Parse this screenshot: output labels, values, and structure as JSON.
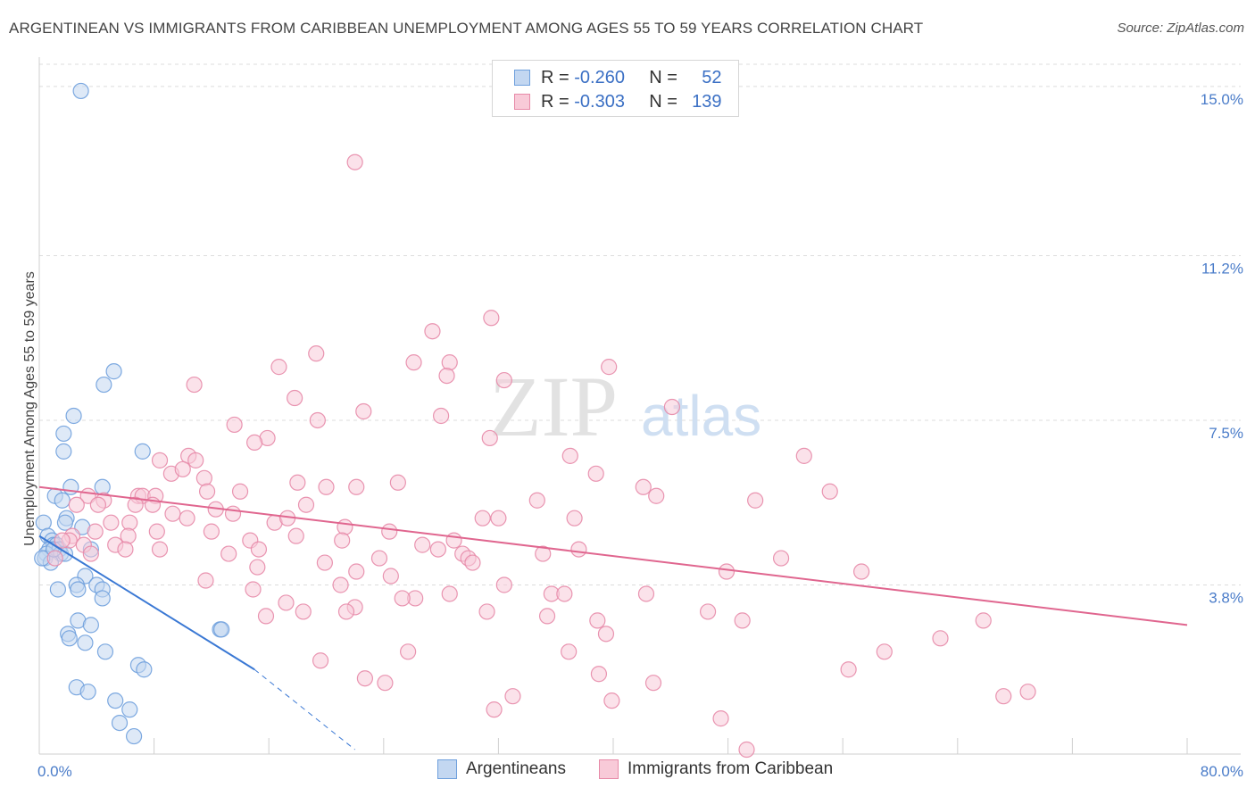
{
  "title": "ARGENTINEAN VS IMMIGRANTS FROM CARIBBEAN UNEMPLOYMENT AMONG AGES 55 TO 59 YEARS CORRELATION CHART",
  "source": "Source: ZipAtlas.com",
  "watermark": {
    "zip": "ZIP",
    "atlas": "atlas"
  },
  "legend": {
    "r_label": "R =",
    "n_label": "N =",
    "series": [
      {
        "r": "-0.260",
        "n": "52",
        "color": "#6fa0dd",
        "fill": "#c3d7f1"
      },
      {
        "r": "-0.303",
        "n": "139",
        "color": "#e78aa8",
        "fill": "#f8cad8"
      }
    ]
  },
  "bottom_legend": [
    "Argentineans",
    "Immigrants from Caribbean"
  ],
  "chart_data": {
    "type": "scatter",
    "title": "ARGENTINEAN VS IMMIGRANTS FROM CARIBBEAN UNEMPLOYMENT AMONG AGES 55 TO 59 YEARS CORRELATION CHART",
    "xlabel": "",
    "ylabel": "Unemployment Among Ages 55 to 59 years",
    "xlim": [
      0,
      80
    ],
    "ylim": [
      0,
      15.5
    ],
    "x_tick_labels": [
      "0.0%",
      "80.0%"
    ],
    "y_ticks": [
      3.8,
      7.5,
      11.2,
      15.0
    ],
    "y_tick_labels": [
      "3.8%",
      "7.5%",
      "11.2%",
      "15.0%"
    ],
    "series": [
      {
        "name": "Argentineans",
        "color": "#6fa0dd",
        "fill": "#c3d7f1",
        "points": [
          [
            2.9,
            14.9
          ],
          [
            5.2,
            8.6
          ],
          [
            4.5,
            8.3
          ],
          [
            2.4,
            7.6
          ],
          [
            1.7,
            7.2
          ],
          [
            7.2,
            6.8
          ],
          [
            1.7,
            6.8
          ],
          [
            4.4,
            6.0
          ],
          [
            2.2,
            6.0
          ],
          [
            1.1,
            5.8
          ],
          [
            1.6,
            5.7
          ],
          [
            0.3,
            5.2
          ],
          [
            1.9,
            5.3
          ],
          [
            1.8,
            5.2
          ],
          [
            3.0,
            5.1
          ],
          [
            0.6,
            4.9
          ],
          [
            0.9,
            4.8
          ],
          [
            1.0,
            4.7
          ],
          [
            1.2,
            4.7
          ],
          [
            0.7,
            4.6
          ],
          [
            1.4,
            4.6
          ],
          [
            0.5,
            4.5
          ],
          [
            1.5,
            4.5
          ],
          [
            1.8,
            4.5
          ],
          [
            3.6,
            4.6
          ],
          [
            0.4,
            4.4
          ],
          [
            0.8,
            4.3
          ],
          [
            3.2,
            4.0
          ],
          [
            4.0,
            3.8
          ],
          [
            2.6,
            3.8
          ],
          [
            4.4,
            3.7
          ],
          [
            2.7,
            3.7
          ],
          [
            1.3,
            3.7
          ],
          [
            4.4,
            3.5
          ],
          [
            2.7,
            3.0
          ],
          [
            3.6,
            2.9
          ],
          [
            12.6,
            2.8
          ],
          [
            12.7,
            2.8
          ],
          [
            2.0,
            2.7
          ],
          [
            2.1,
            2.6
          ],
          [
            3.2,
            2.5
          ],
          [
            4.6,
            2.3
          ],
          [
            6.9,
            2.0
          ],
          [
            7.3,
            1.9
          ],
          [
            2.6,
            1.5
          ],
          [
            3.4,
            1.4
          ],
          [
            5.3,
            1.2
          ],
          [
            6.3,
            1.0
          ],
          [
            5.6,
            0.7
          ],
          [
            6.6,
            0.4
          ],
          [
            1.0,
            4.6
          ],
          [
            0.2,
            4.4
          ]
        ],
        "trend": {
          "x0": 0,
          "y0": 4.9,
          "x1": 15,
          "y1": 1.9,
          "dash_to_x": 22,
          "dash_to_y": 0.1
        }
      },
      {
        "name": "Immigrants from Caribbean",
        "color": "#e78aa8",
        "fill": "#f8cad8",
        "points": [
          [
            22.0,
            13.3
          ],
          [
            31.5,
            9.8
          ],
          [
            27.4,
            9.5
          ],
          [
            19.3,
            9.0
          ],
          [
            26.1,
            8.8
          ],
          [
            16.7,
            8.7
          ],
          [
            28.6,
            8.8
          ],
          [
            28.4,
            8.5
          ],
          [
            39.7,
            8.7
          ],
          [
            32.4,
            8.4
          ],
          [
            10.8,
            8.3
          ],
          [
            17.8,
            8.0
          ],
          [
            22.6,
            7.7
          ],
          [
            44.1,
            7.8
          ],
          [
            19.4,
            7.5
          ],
          [
            28.0,
            7.6
          ],
          [
            13.6,
            7.4
          ],
          [
            15.9,
            7.1
          ],
          [
            15.0,
            7.0
          ],
          [
            31.4,
            7.1
          ],
          [
            8.4,
            6.6
          ],
          [
            10.4,
            6.7
          ],
          [
            10.9,
            6.6
          ],
          [
            37.0,
            6.7
          ],
          [
            53.3,
            6.7
          ],
          [
            9.2,
            6.3
          ],
          [
            10.0,
            6.4
          ],
          [
            38.8,
            6.3
          ],
          [
            11.5,
            6.2
          ],
          [
            18.0,
            6.1
          ],
          [
            25.0,
            6.1
          ],
          [
            11.7,
            5.9
          ],
          [
            14.0,
            5.9
          ],
          [
            20.0,
            6.0
          ],
          [
            22.1,
            6.0
          ],
          [
            42.1,
            6.0
          ],
          [
            55.1,
            5.9
          ],
          [
            3.4,
            5.8
          ],
          [
            4.5,
            5.7
          ],
          [
            6.9,
            5.8
          ],
          [
            7.2,
            5.8
          ],
          [
            8.1,
            5.8
          ],
          [
            34.7,
            5.7
          ],
          [
            43.0,
            5.8
          ],
          [
            49.9,
            5.7
          ],
          [
            2.6,
            5.6
          ],
          [
            4.1,
            5.6
          ],
          [
            6.7,
            5.6
          ],
          [
            7.9,
            5.6
          ],
          [
            9.3,
            5.4
          ],
          [
            12.3,
            5.5
          ],
          [
            13.5,
            5.4
          ],
          [
            18.6,
            5.6
          ],
          [
            10.3,
            5.3
          ],
          [
            16.4,
            5.2
          ],
          [
            17.3,
            5.3
          ],
          [
            30.9,
            5.3
          ],
          [
            32.0,
            5.3
          ],
          [
            37.3,
            5.3
          ],
          [
            5.0,
            5.2
          ],
          [
            6.3,
            5.2
          ],
          [
            21.3,
            5.1
          ],
          [
            24.4,
            5.0
          ],
          [
            8.2,
            5.0
          ],
          [
            12.0,
            5.0
          ],
          [
            3.9,
            5.0
          ],
          [
            2.3,
            4.9
          ],
          [
            2.1,
            4.8
          ],
          [
            5.3,
            4.7
          ],
          [
            6.2,
            4.9
          ],
          [
            14.7,
            4.8
          ],
          [
            17.9,
            4.9
          ],
          [
            28.9,
            4.8
          ],
          [
            21.1,
            4.8
          ],
          [
            1.6,
            4.8
          ],
          [
            3.1,
            4.7
          ],
          [
            6.0,
            4.6
          ],
          [
            8.4,
            4.6
          ],
          [
            13.2,
            4.5
          ],
          [
            15.3,
            4.6
          ],
          [
            26.7,
            4.7
          ],
          [
            27.8,
            4.6
          ],
          [
            29.5,
            4.5
          ],
          [
            37.6,
            4.6
          ],
          [
            35.1,
            4.5
          ],
          [
            29.9,
            4.4
          ],
          [
            1.1,
            4.4
          ],
          [
            3.6,
            4.5
          ],
          [
            19.9,
            4.3
          ],
          [
            23.7,
            4.4
          ],
          [
            30.2,
            4.3
          ],
          [
            15.2,
            4.2
          ],
          [
            47.9,
            4.1
          ],
          [
            51.7,
            4.4
          ],
          [
            57.3,
            4.1
          ],
          [
            22.1,
            4.1
          ],
          [
            24.5,
            4.0
          ],
          [
            32.4,
            3.8
          ],
          [
            21.0,
            3.8
          ],
          [
            11.6,
            3.9
          ],
          [
            14.9,
            3.7
          ],
          [
            28.6,
            3.6
          ],
          [
            35.7,
            3.6
          ],
          [
            36.6,
            3.6
          ],
          [
            42.3,
            3.6
          ],
          [
            17.2,
            3.4
          ],
          [
            26.2,
            3.5
          ],
          [
            25.3,
            3.5
          ],
          [
            22.0,
            3.3
          ],
          [
            21.4,
            3.2
          ],
          [
            18.4,
            3.2
          ],
          [
            15.8,
            3.1
          ],
          [
            31.2,
            3.2
          ],
          [
            35.4,
            3.1
          ],
          [
            46.6,
            3.2
          ],
          [
            38.9,
            3.0
          ],
          [
            49.0,
            3.0
          ],
          [
            65.8,
            3.0
          ],
          [
            39.5,
            2.7
          ],
          [
            62.8,
            2.6
          ],
          [
            25.7,
            2.3
          ],
          [
            36.9,
            2.3
          ],
          [
            58.9,
            2.3
          ],
          [
            19.6,
            2.1
          ],
          [
            39.0,
            1.8
          ],
          [
            56.4,
            1.9
          ],
          [
            24.1,
            1.6
          ],
          [
            22.7,
            1.7
          ],
          [
            42.8,
            1.6
          ],
          [
            33.0,
            1.3
          ],
          [
            39.9,
            1.2
          ],
          [
            31.7,
            1.0
          ],
          [
            67.2,
            1.3
          ],
          [
            68.9,
            1.4
          ],
          [
            47.5,
            0.8
          ],
          [
            49.3,
            0.1
          ]
        ],
        "trend": {
          "x0": 0,
          "y0": 6.0,
          "x1": 80,
          "y1": 2.9
        }
      }
    ]
  }
}
